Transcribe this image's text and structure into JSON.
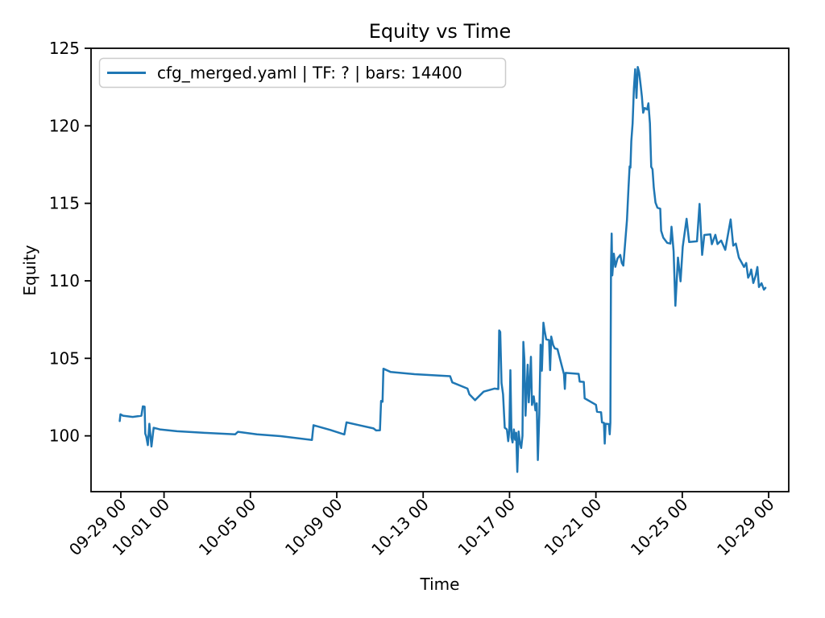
{
  "chart_data": {
    "type": "line",
    "title": "Equity vs Time",
    "xlabel": "Time",
    "ylabel": "Equity",
    "legend": {
      "position": "upper left"
    },
    "grid": false,
    "line_color": "#1f77b4",
    "xlim_days": [
      -1.38,
      30.93
    ],
    "ylim": [
      96.4,
      125.0
    ],
    "y_ticks": [
      100,
      105,
      110,
      115,
      120,
      125
    ],
    "x_ticks": [
      {
        "day": 0,
        "label": "09-29 00"
      },
      {
        "day": 2,
        "label": "10-01 00"
      },
      {
        "day": 6,
        "label": "10-05 00"
      },
      {
        "day": 10,
        "label": "10-09 00"
      },
      {
        "day": 14,
        "label": "10-13 00"
      },
      {
        "day": 18,
        "label": "10-17 00"
      },
      {
        "day": 22,
        "label": "10-21 00"
      },
      {
        "day": 26,
        "label": "10-25 00"
      },
      {
        "day": 30,
        "label": "10-29 00"
      }
    ],
    "series": [
      {
        "name": "cfg_merged.yaml | TF: ? | bars: 14400",
        "color": "#1f77b4",
        "points": [
          [
            -0.05,
            100.95
          ],
          [
            -0.02,
            101.39
          ],
          [
            0.1,
            101.3
          ],
          [
            0.55,
            101.22
          ],
          [
            0.95,
            101.3
          ],
          [
            1.02,
            101.9
          ],
          [
            1.1,
            101.88
          ],
          [
            1.13,
            100.15
          ],
          [
            1.18,
            99.95
          ],
          [
            1.25,
            99.4
          ],
          [
            1.32,
            100.78
          ],
          [
            1.42,
            99.31
          ],
          [
            1.52,
            100.52
          ],
          [
            1.8,
            100.42
          ],
          [
            2.6,
            100.3
          ],
          [
            3.8,
            100.2
          ],
          [
            5.3,
            100.1
          ],
          [
            5.42,
            100.26
          ],
          [
            6.3,
            100.1
          ],
          [
            7.4,
            99.98
          ],
          [
            8.85,
            99.74
          ],
          [
            8.92,
            100.69
          ],
          [
            9.7,
            100.38
          ],
          [
            10.35,
            100.09
          ],
          [
            10.45,
            100.87
          ],
          [
            11.0,
            100.7
          ],
          [
            11.7,
            100.48
          ],
          [
            11.82,
            100.35
          ],
          [
            12.0,
            100.36
          ],
          [
            12.05,
            102.25
          ],
          [
            12.12,
            102.2
          ],
          [
            12.16,
            104.33
          ],
          [
            12.5,
            104.12
          ],
          [
            13.6,
            103.98
          ],
          [
            15.25,
            103.85
          ],
          [
            15.35,
            103.45
          ],
          [
            16.05,
            103.05
          ],
          [
            16.14,
            102.68
          ],
          [
            16.4,
            102.3
          ],
          [
            16.8,
            102.85
          ],
          [
            17.3,
            103.05
          ],
          [
            17.48,
            103.02
          ],
          [
            17.52,
            106.8
          ],
          [
            17.57,
            106.7
          ],
          [
            17.63,
            103.4
          ],
          [
            17.7,
            102.68
          ],
          [
            17.78,
            100.52
          ],
          [
            17.88,
            100.42
          ],
          [
            17.94,
            99.66
          ],
          [
            17.99,
            100.35
          ],
          [
            18.04,
            104.24
          ],
          [
            18.09,
            99.9
          ],
          [
            18.14,
            99.57
          ],
          [
            18.2,
            100.42
          ],
          [
            18.26,
            99.75
          ],
          [
            18.31,
            100.2
          ],
          [
            18.36,
            97.67
          ],
          [
            18.42,
            100.28
          ],
          [
            18.48,
            99.55
          ],
          [
            18.54,
            99.22
          ],
          [
            18.6,
            100.0
          ],
          [
            18.64,
            106.06
          ],
          [
            18.69,
            104.9
          ],
          [
            18.74,
            101.3
          ],
          [
            18.79,
            102.9
          ],
          [
            18.84,
            104.59
          ],
          [
            18.89,
            102.16
          ],
          [
            18.94,
            103.4
          ],
          [
            18.99,
            105.1
          ],
          [
            19.04,
            101.99
          ],
          [
            19.12,
            102.55
          ],
          [
            19.2,
            101.64
          ],
          [
            19.26,
            102.1
          ],
          [
            19.31,
            98.44
          ],
          [
            19.38,
            101.4
          ],
          [
            19.44,
            105.88
          ],
          [
            19.5,
            104.2
          ],
          [
            19.57,
            107.3
          ],
          [
            19.62,
            106.8
          ],
          [
            19.7,
            106.22
          ],
          [
            19.83,
            106.18
          ],
          [
            19.88,
            104.24
          ],
          [
            19.93,
            106.4
          ],
          [
            20.02,
            105.85
          ],
          [
            20.1,
            105.64
          ],
          [
            20.22,
            105.6
          ],
          [
            20.52,
            103.98
          ],
          [
            20.56,
            103.03
          ],
          [
            20.6,
            104.06
          ],
          [
            21.2,
            104.0
          ],
          [
            21.25,
            103.5
          ],
          [
            21.44,
            103.48
          ],
          [
            21.48,
            102.42
          ],
          [
            22.0,
            102.0
          ],
          [
            22.05,
            101.56
          ],
          [
            22.24,
            101.52
          ],
          [
            22.28,
            100.87
          ],
          [
            22.37,
            100.84
          ],
          [
            22.41,
            99.5
          ],
          [
            22.45,
            100.78
          ],
          [
            22.6,
            100.76
          ],
          [
            22.64,
            100.1
          ],
          [
            22.67,
            100.85
          ],
          [
            22.7,
            111.0
          ],
          [
            22.73,
            113.05
          ],
          [
            22.76,
            110.35
          ],
          [
            22.83,
            111.75
          ],
          [
            22.9,
            110.9
          ],
          [
            23.0,
            111.45
          ],
          [
            23.13,
            111.67
          ],
          [
            23.2,
            111.15
          ],
          [
            23.27,
            110.98
          ],
          [
            23.38,
            112.88
          ],
          [
            23.44,
            113.92
          ],
          [
            23.51,
            116.0
          ],
          [
            23.56,
            117.38
          ],
          [
            23.6,
            117.3
          ],
          [
            23.64,
            119.02
          ],
          [
            23.7,
            120.15
          ],
          [
            23.76,
            122.4
          ],
          [
            23.82,
            123.65
          ],
          [
            23.88,
            121.8
          ],
          [
            23.94,
            123.79
          ],
          [
            24.0,
            123.45
          ],
          [
            24.07,
            122.66
          ],
          [
            24.13,
            121.9
          ],
          [
            24.19,
            120.84
          ],
          [
            24.26,
            121.15
          ],
          [
            24.37,
            121.05
          ],
          [
            24.43,
            121.45
          ],
          [
            24.5,
            120.15
          ],
          [
            24.56,
            117.35
          ],
          [
            24.62,
            117.2
          ],
          [
            24.68,
            116.0
          ],
          [
            24.76,
            115.05
          ],
          [
            24.85,
            114.72
          ],
          [
            24.98,
            114.65
          ],
          [
            25.02,
            113.23
          ],
          [
            25.12,
            112.78
          ],
          [
            25.3,
            112.45
          ],
          [
            25.45,
            112.4
          ],
          [
            25.5,
            113.49
          ],
          [
            25.6,
            111.9
          ],
          [
            25.68,
            108.39
          ],
          [
            25.8,
            111.5
          ],
          [
            25.92,
            109.97
          ],
          [
            26.02,
            112.19
          ],
          [
            26.2,
            114.0
          ],
          [
            26.32,
            112.5
          ],
          [
            26.68,
            112.55
          ],
          [
            26.8,
            114.96
          ],
          [
            26.92,
            111.67
          ],
          [
            27.02,
            112.96
          ],
          [
            27.3,
            113.0
          ],
          [
            27.37,
            112.36
          ],
          [
            27.53,
            112.97
          ],
          [
            27.63,
            112.37
          ],
          [
            27.8,
            112.6
          ],
          [
            27.99,
            112.0
          ],
          [
            28.24,
            113.96
          ],
          [
            28.36,
            112.27
          ],
          [
            28.48,
            112.4
          ],
          [
            28.62,
            111.5
          ],
          [
            28.74,
            111.2
          ],
          [
            28.86,
            110.89
          ],
          [
            28.96,
            111.15
          ],
          [
            29.05,
            110.2
          ],
          [
            29.14,
            110.45
          ],
          [
            29.19,
            110.73
          ],
          [
            29.29,
            109.86
          ],
          [
            29.4,
            110.35
          ],
          [
            29.48,
            110.89
          ],
          [
            29.55,
            109.6
          ],
          [
            29.67,
            109.85
          ],
          [
            29.78,
            109.43
          ],
          [
            29.85,
            109.55
          ]
        ]
      }
    ]
  }
}
